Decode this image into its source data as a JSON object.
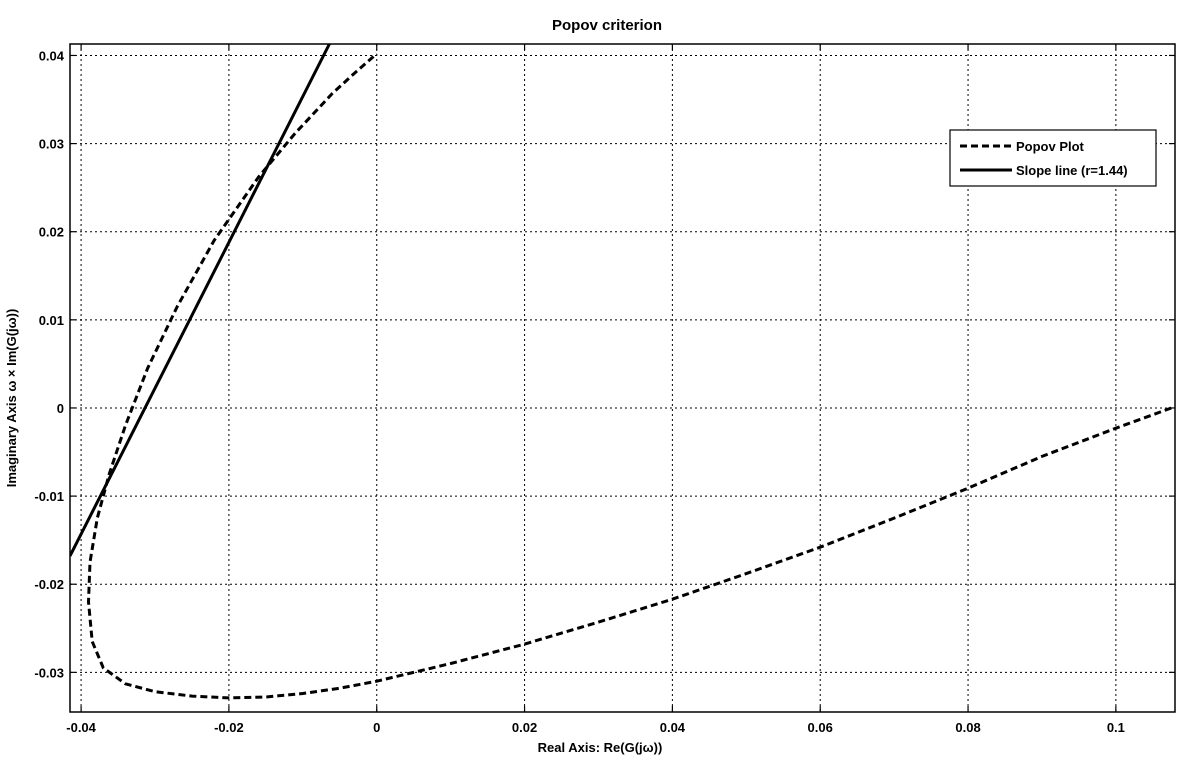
{
  "chart_data": {
    "type": "line",
    "title": "Popov criterion",
    "xlabel": "Real Axis: Re(G(jω))",
    "ylabel": "Imaginary Axis ω × Im(G(jω))",
    "xlim": [
      -0.0415,
      0.108
    ],
    "ylim": [
      -0.0345,
      0.0413
    ],
    "x_ticks": [
      -0.04,
      -0.02,
      0,
      0.02,
      0.04,
      0.06,
      0.08,
      0.1
    ],
    "x_tick_labels": [
      "-0.04",
      "-0.02",
      "0",
      "0.02",
      "0.04",
      "0.06",
      "0.08",
      "0.1"
    ],
    "y_ticks": [
      -0.03,
      -0.02,
      -0.01,
      0,
      0.01,
      0.02,
      0.03,
      0.04
    ],
    "y_tick_labels": [
      "-0.03",
      "-0.02",
      "-0.01",
      "0",
      "0.01",
      "0.02",
      "0.03",
      "0.04"
    ],
    "grid": true,
    "legend_position": "top-right",
    "series": [
      {
        "name": "Popov Plot",
        "style": "dashed",
        "color": "#000000",
        "x": [
          0.1075,
          0.1,
          0.09,
          0.08,
          0.07,
          0.06,
          0.05,
          0.04,
          0.03,
          0.02,
          0.01,
          0.0,
          -0.005,
          -0.01,
          -0.015,
          -0.02,
          -0.025,
          -0.03,
          -0.034,
          -0.037,
          -0.0385,
          -0.039,
          -0.0388,
          -0.0378,
          -0.0362,
          -0.034,
          -0.031,
          -0.027,
          -0.022,
          -0.016,
          -0.011,
          -0.006,
          -0.003,
          0.0
        ],
        "y": [
          0.0,
          -0.0023,
          -0.0055,
          -0.0091,
          -0.0125,
          -0.0158,
          -0.0188,
          -0.0217,
          -0.0243,
          -0.0268,
          -0.029,
          -0.031,
          -0.0318,
          -0.0324,
          -0.0328,
          -0.0329,
          -0.0327,
          -0.0322,
          -0.0313,
          -0.0295,
          -0.0265,
          -0.022,
          -0.0175,
          -0.0125,
          -0.0075,
          -0.002,
          0.0045,
          0.0115,
          0.019,
          0.0262,
          0.0312,
          0.0357,
          0.038,
          0.0402
        ]
      },
      {
        "name": "Slope line (r=1.44)",
        "style": "solid",
        "color": "#000000",
        "x": [
          -0.0415,
          -0.0064
        ],
        "y": [
          -0.0168,
          0.0413
        ]
      }
    ]
  }
}
